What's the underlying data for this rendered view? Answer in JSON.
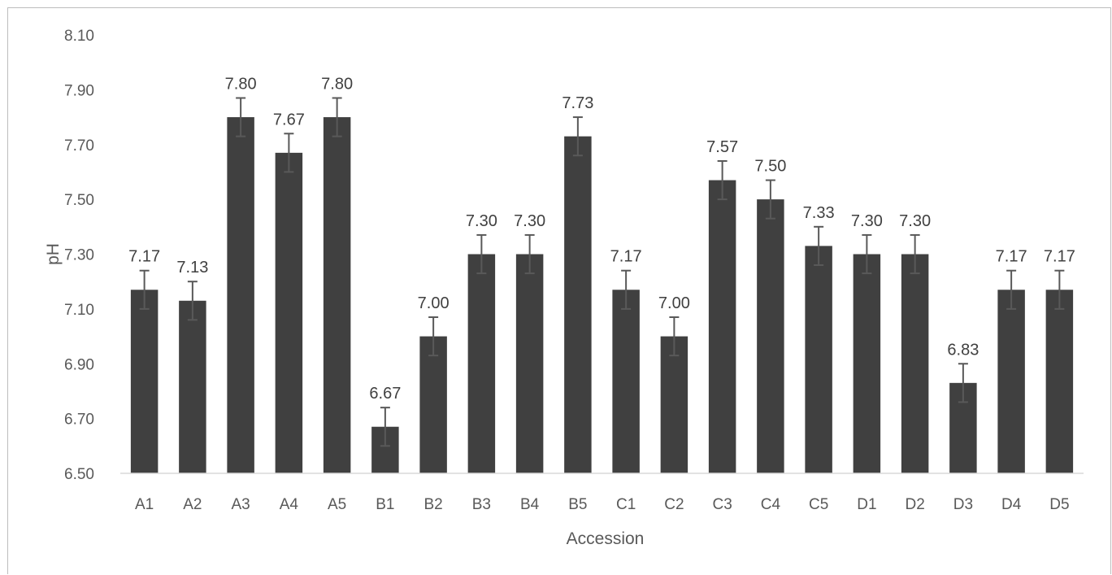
{
  "chart_data": {
    "type": "bar",
    "title": "",
    "xlabel": "Accession",
    "ylabel": "pH",
    "ylim": [
      6.5,
      8.1
    ],
    "yticks": [
      "6.50",
      "6.70",
      "6.90",
      "7.10",
      "7.30",
      "7.50",
      "7.70",
      "7.90",
      "8.10"
    ],
    "categories": [
      "A1",
      "A2",
      "A3",
      "A4",
      "A5",
      "B1",
      "B2",
      "B3",
      "B4",
      "B5",
      "C1",
      "C2",
      "C3",
      "C4",
      "C5",
      "D1",
      "D2",
      "D3",
      "D4",
      "D5"
    ],
    "values": [
      7.17,
      7.13,
      7.8,
      7.67,
      7.8,
      6.67,
      7.0,
      7.3,
      7.3,
      7.73,
      7.17,
      7.0,
      7.57,
      7.5,
      7.33,
      7.3,
      7.3,
      6.83,
      7.17,
      7.17
    ],
    "labels": [
      "7.17",
      "7.13",
      "7.80",
      "7.67",
      "7.80",
      "6.67",
      "7.00",
      "7.30",
      "7.30",
      "7.73",
      "7.17",
      "7.00",
      "7.57",
      "7.50",
      "7.33",
      "7.30",
      "7.30",
      "6.83",
      "7.17",
      "7.17"
    ],
    "error": [
      0.07,
      0.07,
      0.07,
      0.07,
      0.07,
      0.07,
      0.07,
      0.07,
      0.07,
      0.07,
      0.07,
      0.07,
      0.07,
      0.07,
      0.07,
      0.07,
      0.07,
      0.07,
      0.07,
      0.07
    ],
    "grid": false,
    "legend": "none",
    "bar_color": "#404040",
    "errorbar_color": "#595959"
  }
}
